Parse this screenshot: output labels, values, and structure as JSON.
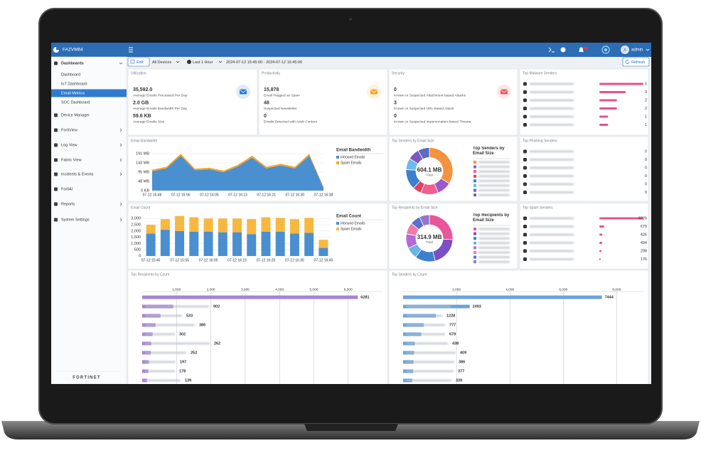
{
  "app": {
    "device": "FAZVM64",
    "avatar": "A",
    "user": "admin"
  },
  "sidebar": {
    "menu": [
      "Dashboards",
      "Device Manager",
      "FortiView",
      "Log View",
      "Fabric View",
      "Incidents & Events",
      "FortiAI",
      "Reports",
      "System Settings"
    ],
    "dashboards": [
      "Dashboard",
      "IoT Dashboard",
      "Email Metrics",
      "SOC Dashboard"
    ],
    "selected": 2,
    "brand": "FORTINET"
  },
  "toolbar": {
    "edit": "Edit",
    "devices": "All Devices",
    "range": "Last 1 Hour",
    "period": "2024-07-12 15:45:00 - 2024-07-12 16:45:00",
    "refresh": "Refresh"
  },
  "widgets": [
    {
      "title": "Utilization",
      "color": "#2f7bd0",
      "stats": [
        {
          "value": "35,592.0",
          "label": "Average Emails Processed Per Day"
        },
        {
          "value": "2.0 GB",
          "label": "Average Emails Bandwidth Per Day"
        },
        {
          "value": "59.6 KB",
          "label": "Average Emails Size"
        }
      ]
    },
    {
      "title": "Productivity",
      "color": "#f5a623",
      "stats": [
        {
          "value": "15,878",
          "label": "Email Flagged as Spam"
        },
        {
          "value": "48",
          "label": "Suspected Newsletter"
        },
        {
          "value": "0",
          "label": "Emails Detected with Adult Content"
        }
      ]
    },
    {
      "title": "Security",
      "color": "#e8595e",
      "stats": [
        {
          "value": "0",
          "label": "Known or Suspected Attachment-based Attacks"
        },
        {
          "value": "3",
          "label": "Known or Suspected URL-based Attack"
        },
        {
          "value": "0",
          "label": "Known or Suspected Impersonation-based Threats"
        }
      ]
    }
  ],
  "chart_data": [
    {
      "type": "area",
      "title": "Email Bandwidth",
      "legend_title": "Email Bandwidth",
      "stacked": true,
      "grid": true,
      "categories": [
        "07-12 15:48",
        null,
        "07-12 15:56",
        null,
        "07-12 16:05",
        null,
        "07-12 16:13",
        null,
        "07-12 16:21",
        null,
        "07-12 16:30",
        null,
        "07-12 16:38"
      ],
      "series": [
        {
          "name": "Inbound Emails",
          "color": "#4a8fd0",
          "values": [
            100,
            115,
            180,
            105,
            110,
            95,
            125,
            170,
            115,
            130,
            115,
            180,
            15
          ]
        },
        {
          "name": "Spam Emails",
          "color": "#f5a623",
          "values": [
            8,
            8,
            10,
            8,
            8,
            8,
            8,
            10,
            8,
            8,
            8,
            10,
            3
          ]
        }
      ],
      "ylim": [
        0,
        191
      ],
      "yticks": [
        {
          "value": 0,
          "label": "0 KB"
        },
        {
          "value": 48,
          "label": "48 MB"
        },
        {
          "value": 95,
          "label": "95 MB"
        },
        {
          "value": 143,
          "label": "143 MB"
        },
        {
          "value": 191,
          "label": "191 MB"
        }
      ]
    },
    {
      "type": "bar",
      "title": "Email Count",
      "legend_title": "Email Count",
      "stacked": true,
      "grid": true,
      "categories": [
        "07-12 15:45",
        null,
        "07-12 15:55",
        null,
        "07-12 16:05",
        null,
        "07-12 16:15",
        null,
        "07-12 16:25",
        null,
        "07-12 16:35",
        null,
        "07-12 16:45"
      ],
      "series": [
        {
          "name": "Inbound Emails",
          "color": "#4a8fd0",
          "values": [
            1800,
            2100,
            2000,
            1950,
            1950,
            1900,
            1900,
            1750,
            1950,
            1950,
            1800,
            1850,
            650
          ]
        },
        {
          "name": "Spam Emails",
          "color": "#f8b73e",
          "values": [
            700,
            850,
            1200,
            1150,
            1050,
            1100,
            1100,
            1200,
            1150,
            1100,
            1150,
            1200,
            650
          ]
        }
      ],
      "ylim": [
        0,
        3300
      ],
      "yticks": [
        0,
        500,
        {
          "value": 1000,
          "label": "1,000"
        },
        {
          "value": 1500,
          "label": "1,500"
        },
        {
          "value": 2000,
          "label": "2,000"
        },
        {
          "value": 2500,
          "label": "2,500"
        },
        {
          "value": 3000,
          "label": "3,000"
        }
      ]
    },
    {
      "type": "donut",
      "title": "Top Senders by Email Size",
      "legend_title": "Top Senders by Email Size",
      "total": "604.1 MB",
      "total_label": "Total",
      "values": [
        34,
        10,
        12,
        6,
        14,
        8,
        8,
        8
      ],
      "colors": [
        "#f5923e",
        "#9b59c9",
        "#ef5f8f",
        "#e0435f",
        "#3a7fd0",
        "#6dbbe8",
        "#7e57c2",
        "#5c6bc0"
      ]
    },
    {
      "type": "donut",
      "title": "Top Recipients by Email Size",
      "legend_title": "Top Recipients by Email Size",
      "total": "314.9 MB",
      "total_label": "Total",
      "values": [
        26,
        20,
        14,
        8,
        10,
        8,
        7,
        7
      ],
      "colors": [
        "#e8569b",
        "#7a4fc8",
        "#3b7fd1",
        "#68b5e6",
        "#b36ad8",
        "#f07aa8",
        "#5a6fd0",
        "#9575cd"
      ]
    },
    {
      "type": "list",
      "title": "Top Malware Senders",
      "values": [
        5,
        3,
        2,
        2,
        1,
        1
      ],
      "xlim": [
        0,
        5
      ],
      "color": "#e8508a"
    },
    {
      "type": "list",
      "title": "Top Phishing Senders",
      "values": [
        0,
        0,
        0,
        0,
        0,
        0
      ],
      "xlim": [
        0,
        1
      ],
      "color": "#e8508a"
    },
    {
      "type": "list",
      "title": "Top Spam Senders",
      "values": [
        6226,
        679,
        426,
        404,
        298,
        176
      ],
      "xlim": [
        0,
        6226
      ],
      "color": "#e8508a"
    },
    {
      "type": "hbar",
      "title": "Top Recipients by Count",
      "values": [
        6281,
        902,
        533,
        386,
        302,
        262,
        252,
        197,
        178,
        139
      ],
      "xlim": [
        0,
        7000
      ],
      "xticks": [
        {
          "value": 1000,
          "label": "1,000"
        },
        {
          "value": 2000,
          "label": "2,000"
        },
        {
          "value": 3000,
          "label": "3,000"
        },
        {
          "value": 4000,
          "label": "4,000"
        },
        {
          "value": 5000,
          "label": "5,000"
        },
        {
          "value": 6000,
          "label": "6,000"
        }
      ],
      "color": "#a784d4"
    },
    {
      "type": "hbar",
      "title": "Top Senders by Count",
      "values": [
        7444,
        2493,
        1228,
        777,
        679,
        438,
        409,
        386,
        377,
        339
      ],
      "xlim": [
        0,
        9000
      ],
      "xticks": [
        {
          "value": 2000,
          "label": "2,000"
        },
        {
          "value": 4000,
          "label": "4,000"
        },
        {
          "value": 6000,
          "label": "6,000"
        },
        {
          "value": 8000,
          "label": "8,000"
        }
      ],
      "color": "#6aa3dc"
    }
  ]
}
